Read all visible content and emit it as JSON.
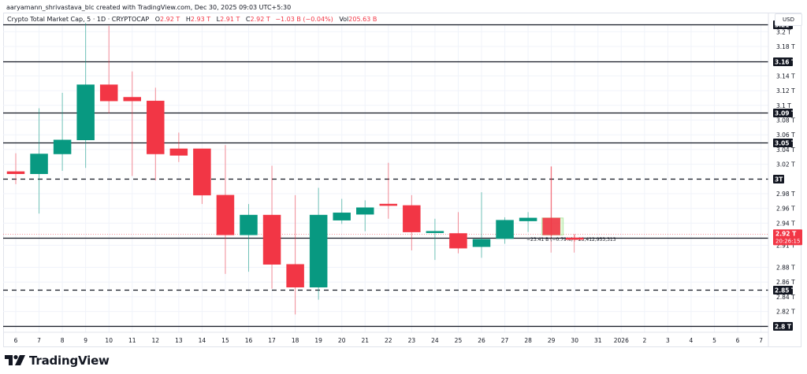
{
  "credit": "aaryamann_shrivastava_blc created with TradingView.com, Dec 30, 2025 09:03 UTC+5:30",
  "legend": {
    "symbol": "Crypto Total Market Cap, 5 · 1D · CRYPTOCAP",
    "open_key": "O",
    "open": "2.92 T",
    "high_key": "H",
    "high": "2.93 T",
    "low_key": "L",
    "low": "2.91 T",
    "close_key": "C",
    "close": "2.92 T",
    "change": "−1.03 B (−0.04%)",
    "vol_key": "Vol",
    "vol": "205.63 B"
  },
  "currency": "USD",
  "last_price": {
    "label": "2.92 T",
    "countdown": "20:26:15",
    "color": "#f23645"
  },
  "measure_label": "−23.41 B (−0.79%) −23,412,953,313",
  "logo_text": "TradingView",
  "colors": {
    "up": "#089981",
    "down": "#f23645",
    "grid": "#f0f3fa",
    "level": "#131722"
  },
  "chart_data": {
    "type": "candlestick",
    "title": "Crypto Total Market Cap, 5 · 1D · CRYPTOCAP",
    "xlabel": "",
    "ylabel": "USD",
    "ylim": [
      2.795,
      3.22
    ],
    "grid": true,
    "x_ticks": [
      "6",
      "7",
      "8",
      "9",
      "10",
      "11",
      "12",
      "13",
      "14",
      "15",
      "16",
      "17",
      "18",
      "19",
      "20",
      "21",
      "22",
      "23",
      "24",
      "25",
      "26",
      "27",
      "28",
      "29",
      "30",
      "31",
      "2026",
      "2",
      "3",
      "4",
      "5",
      "6",
      "7"
    ],
    "y_ticks": [
      "3.2 T",
      "3.18 T",
      "3.14 T",
      "3.12 T",
      "3.1 T",
      "3.08 T",
      "3.06 T",
      "3.04 T",
      "3.02 T",
      "2.98 T",
      "2.96 T",
      "2.94 T",
      "2.91 T",
      "2.88 T",
      "2.86 T",
      "2.84 T",
      "2.82 T",
      "2.8 T"
    ],
    "levels": [
      {
        "price": 3.21,
        "label": "3.21 T",
        "style": "solid"
      },
      {
        "price": 3.16,
        "label": "3.16 T",
        "style": "solid"
      },
      {
        "price": 3.09,
        "label": "3.09 T",
        "style": "solid"
      },
      {
        "price": 3.05,
        "label": "3.05 T",
        "style": "solid"
      },
      {
        "price": 3.0,
        "label": "3T",
        "style": "dashed"
      },
      {
        "price": 2.92,
        "label": "2.92 T",
        "style": "solid"
      },
      {
        "price": 2.85,
        "label": "2.85 T",
        "style": "dashed"
      },
      {
        "price": 2.8,
        "label": "2.8 T",
        "style": "solid"
      }
    ],
    "candles": [
      {
        "date": "6",
        "o": 3.01,
        "h": 3.035,
        "l": 2.993,
        "c": 3.007
      },
      {
        "date": "7",
        "o": 3.007,
        "h": 3.096,
        "l": 2.953,
        "c": 3.034
      },
      {
        "date": "8",
        "o": 3.034,
        "h": 3.117,
        "l": 3.011,
        "c": 3.053
      },
      {
        "date": "9",
        "o": 3.053,
        "h": 3.212,
        "l": 3.015,
        "c": 3.128
      },
      {
        "date": "10",
        "o": 3.128,
        "h": 3.208,
        "l": 3.089,
        "c": 3.106
      },
      {
        "date": "11",
        "o": 3.111,
        "h": 3.146,
        "l": 3.004,
        "c": 3.106
      },
      {
        "date": "12",
        "o": 3.106,
        "h": 3.124,
        "l": 2.998,
        "c": 3.034
      },
      {
        "date": "13",
        "o": 3.041,
        "h": 3.063,
        "l": 3.023,
        "c": 3.032
      },
      {
        "date": "14",
        "o": 3.041,
        "h": 3.041,
        "l": 2.966,
        "c": 2.978
      },
      {
        "date": "15",
        "o": 2.978,
        "h": 3.046,
        "l": 2.871,
        "c": 2.924
      },
      {
        "date": "16",
        "o": 2.924,
        "h": 2.966,
        "l": 2.874,
        "c": 2.951
      },
      {
        "date": "17",
        "o": 2.951,
        "h": 3.018,
        "l": 2.851,
        "c": 2.884
      },
      {
        "date": "18",
        "o": 2.884,
        "h": 2.978,
        "l": 2.816,
        "c": 2.853
      },
      {
        "date": "19",
        "o": 2.853,
        "h": 2.988,
        "l": 2.836,
        "c": 2.951
      },
      {
        "date": "20",
        "o": 2.944,
        "h": 2.973,
        "l": 2.939,
        "c": 2.954
      },
      {
        "date": "21",
        "o": 2.952,
        "h": 2.971,
        "l": 2.929,
        "c": 2.961
      },
      {
        "date": "22",
        "o": 2.966,
        "h": 3.022,
        "l": 2.946,
        "c": 2.964
      },
      {
        "date": "23",
        "o": 2.964,
        "h": 2.978,
        "l": 2.903,
        "c": 2.928
      },
      {
        "date": "24",
        "o": 2.929,
        "h": 2.946,
        "l": 2.89,
        "c": 2.929
      },
      {
        "date": "25",
        "o": 2.926,
        "h": 2.955,
        "l": 2.899,
        "c": 2.906
      },
      {
        "date": "26",
        "o": 2.908,
        "h": 2.982,
        "l": 2.893,
        "c": 2.918
      },
      {
        "date": "27",
        "o": 2.919,
        "h": 2.948,
        "l": 2.912,
        "c": 2.944
      },
      {
        "date": "28",
        "o": 2.943,
        "h": 2.955,
        "l": 2.928,
        "c": 2.947
      },
      {
        "date": "29",
        "o": 2.947,
        "h": 3.017,
        "l": 2.922,
        "c": 2.924
      },
      {
        "date": "30",
        "o": 2.92,
        "h": 2.925,
        "l": 2.915,
        "c": 2.919
      }
    ]
  }
}
